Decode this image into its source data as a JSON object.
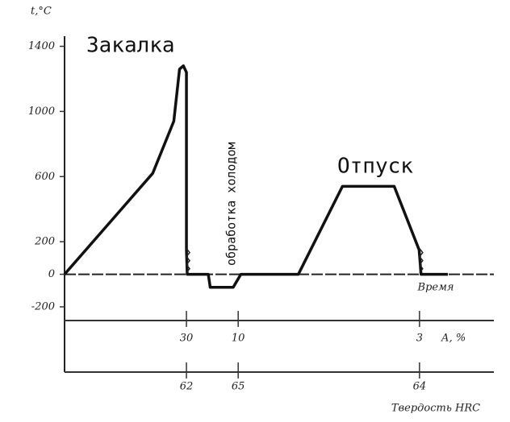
{
  "chart_data": {
    "type": "line",
    "ylabel": "t,°C",
    "xlabel": "Время",
    "annotations": [
      "Закалка",
      "обработка холодом",
      "Отпуск"
    ],
    "ylim": [
      -200,
      1400
    ],
    "yticks": [
      1400,
      1000,
      600,
      200,
      0,
      -200
    ],
    "xlim": [
      0,
      100
    ],
    "x": [
      0,
      23,
      28.5,
      30,
      31,
      31.8,
      31.8,
      32,
      37.5,
      38,
      44,
      46,
      61,
      72.5,
      86,
      92.5,
      93,
      100
    ],
    "series": [
      {
        "color": "#111111",
        "values": [
          0,
          620,
          940,
          1260,
          1280,
          1240,
          150,
          0,
          0,
          -80,
          -80,
          0,
          0,
          540,
          540,
          150,
          0,
          0
        ]
      }
    ],
    "retained_austenite": {
      "label": "А, %",
      "x": [
        31.8,
        45.3,
        92.6
      ],
      "values": [
        30,
        10,
        3
      ]
    },
    "hardness": {
      "label": "Твердость HRC",
      "x": [
        31.8,
        45.3,
        92.6
      ],
      "values": [
        62,
        65,
        64
      ]
    }
  }
}
